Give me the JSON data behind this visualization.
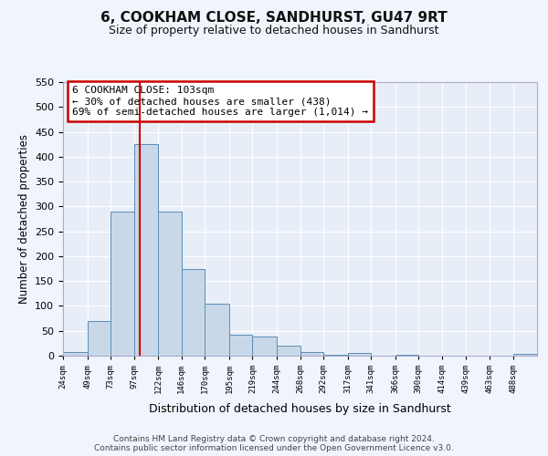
{
  "title": "6, COOKHAM CLOSE, SANDHURST, GU47 9RT",
  "subtitle": "Size of property relative to detached houses in Sandhurst",
  "xlabel": "Distribution of detached houses by size in Sandhurst",
  "ylabel": "Number of detached properties",
  "bar_color": "#c8d8e8",
  "bar_edge_color": "#5b8db8",
  "background_color": "#e8eef8",
  "fig_color": "#f0f4fc",
  "grid_color": "#ffffff",
  "vline_x": 103,
  "vline_color": "#cc0000",
  "annotation_line1": "6 COOKHAM CLOSE: 103sqm",
  "annotation_line2": "← 30% of detached houses are smaller (438)",
  "annotation_line3": "69% of semi-detached houses are larger (1,014) →",
  "annotation_box_color": "#ffffff",
  "annotation_box_edge": "#cc0000",
  "bin_edges": [
    24,
    49,
    73,
    97,
    122,
    146,
    170,
    195,
    219,
    244,
    268,
    292,
    317,
    341,
    366,
    390,
    414,
    439,
    463,
    488,
    512
  ],
  "bar_heights": [
    8,
    70,
    290,
    425,
    290,
    175,
    105,
    43,
    38,
    20,
    8,
    2,
    5,
    0,
    1,
    0,
    0,
    0,
    0,
    3
  ],
  "ylim": [
    0,
    550
  ],
  "yticks": [
    0,
    50,
    100,
    150,
    200,
    250,
    300,
    350,
    400,
    450,
    500,
    550
  ],
  "footer_line1": "Contains HM Land Registry data © Crown copyright and database right 2024.",
  "footer_line2": "Contains public sector information licensed under the Open Government Licence v3.0."
}
